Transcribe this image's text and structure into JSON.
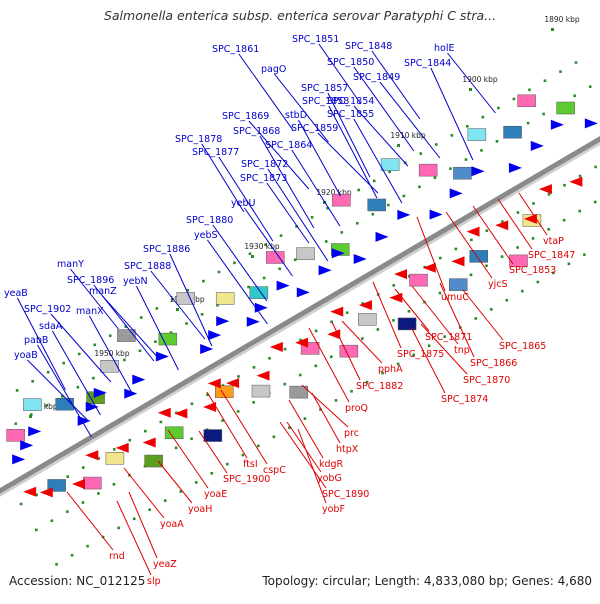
{
  "title": "Salmonella enterica subsp. enterica serovar Paratyphi C stra...",
  "footer": {
    "accession": "Accession: NC_012125",
    "summary": "Topology: circular; Length: 4,833,080 bp; Genes: 4,680"
  },
  "colors": {
    "forward_labels": "#0000cc",
    "reverse_labels": "#dd0000",
    "forward_arrows": "#0000ee",
    "reverse_arrows": "#ee0000",
    "backbone": "#8a8a8a",
    "tick": "#2a8a2a"
  },
  "kbp_marks": [
    "1890 kbp",
    "1900 kbp",
    "1910 kbp",
    "1920 kbp",
    "1930 kbp",
    "1940 kbp",
    "1950 kbp",
    "1960 kbp"
  ],
  "forward_genes": [
    "SPC_1851",
    "SPC_1848",
    "SPC_1861",
    "SPC_1850",
    "SPC_1844",
    "holE",
    "pagO",
    "SPC_1849",
    "SPC_1857",
    "SPC_1858",
    "SPC_1854",
    "SPC_1869",
    "stbD",
    "SPC_1855",
    "SPC_1868",
    "SPC_1859",
    "SPC_1878",
    "SPC_1864",
    "SPC_1877",
    "SPC_1872",
    "SPC_1873",
    "yebU",
    "SPC_1880",
    "yebS",
    "SPC_1886",
    "manY",
    "SPC_1888",
    "SPC_1896",
    "yebN",
    "yeaB",
    "manZ",
    "SPC_1902",
    "manX",
    "sdaA",
    "pabB",
    "yoaB"
  ],
  "reverse_genes": [
    "vtaP",
    "SPC_1847",
    "SPC_1853",
    "yjcS",
    "umuC",
    "SPC_1871",
    "SPC_1865",
    "tnp",
    "SPC_1875",
    "SPC_1866",
    "pphA",
    "SPC_1870",
    "SPC_1882",
    "SPC_1874",
    "proQ",
    "prc",
    "htpX",
    "kdgR",
    "ftsI",
    "cspC",
    "SPC_1900",
    "yobG",
    "yoaE",
    "SPC_1890",
    "yobF",
    "yoaH",
    "yoaA",
    "rnd",
    "yeaZ",
    "slp"
  ]
}
